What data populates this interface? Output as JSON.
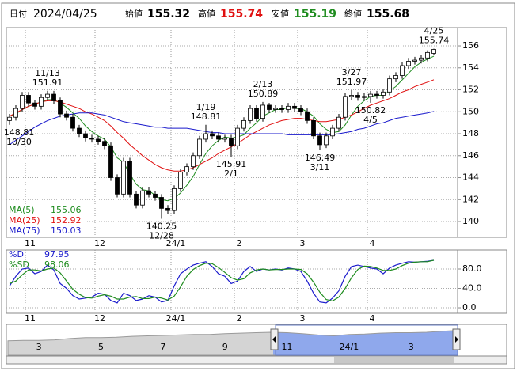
{
  "header": {
    "date_label": "日付",
    "date": "2024/04/25",
    "open_label": "始値",
    "high_label": "高値",
    "low_label": "安値",
    "close_label": "終値"
  },
  "chart_data": [
    {
      "type": "candlestick",
      "x": [
        null,
        null,
        null,
        "11",
        null,
        null,
        null,
        null,
        null,
        null,
        null,
        null,
        null,
        null,
        "12",
        null,
        null,
        null,
        null,
        null,
        null,
        null,
        null,
        null,
        null,
        null,
        "24/1",
        null,
        null,
        null,
        null,
        null,
        null,
        null,
        null,
        null,
        "2",
        null,
        null,
        null,
        null,
        null,
        null,
        null,
        null,
        null,
        "3",
        null,
        null,
        null,
        null,
        null,
        null,
        null,
        null,
        null,
        null,
        "4",
        null,
        null,
        null,
        null,
        null,
        null,
        null,
        null,
        null,
        null
      ],
      "open": [
        149.2,
        149.5,
        150.3,
        151.5,
        150.8,
        150.5,
        151.3,
        151.6,
        151.0,
        149.8,
        149.5,
        148.5,
        148.0,
        147.6,
        147.5,
        147.3,
        146.9,
        144.0,
        142.5,
        145.5,
        142.5,
        141.5,
        142.8,
        142.5,
        142.2,
        141.2,
        141.0,
        143.0,
        144.5,
        145.0,
        146.0,
        147.5,
        148.0,
        147.8,
        147.5,
        147.6,
        146.9,
        148.5,
        149.2,
        150.3,
        149.4,
        150.6,
        150.2,
        150.3,
        150.2,
        150.5,
        150.3,
        150.0,
        149.2,
        147.8,
        147.0,
        147.8,
        148.5,
        149.5,
        151.4,
        151.5,
        151.3,
        151.4,
        151.6,
        151.5,
        151.8,
        153.0,
        153.3,
        154.2,
        154.6,
        154.7,
        154.9,
        155.32
      ],
      "high": [
        149.8,
        150.6,
        151.8,
        151.8,
        151.1,
        151.6,
        151.91,
        151.9,
        151.3,
        150.1,
        149.8,
        148.8,
        148.3,
        147.9,
        147.8,
        147.6,
        147.2,
        144.3,
        145.8,
        145.8,
        142.8,
        143.1,
        143.1,
        142.8,
        142.5,
        141.5,
        143.3,
        144.8,
        145.3,
        146.3,
        147.8,
        148.81,
        148.3,
        148.1,
        147.9,
        147.9,
        148.8,
        149.5,
        150.6,
        150.6,
        150.89,
        150.8,
        150.6,
        150.6,
        150.8,
        150.8,
        150.6,
        150.3,
        149.5,
        148.1,
        148.1,
        148.8,
        149.8,
        151.7,
        151.97,
        151.8,
        151.7,
        151.9,
        151.9,
        152.1,
        153.3,
        153.6,
        154.5,
        154.9,
        155.0,
        155.2,
        155.6,
        155.74
      ],
      "low": [
        148.81,
        149.2,
        150.0,
        150.5,
        150.2,
        150.2,
        151.0,
        150.7,
        149.5,
        149.2,
        148.2,
        147.7,
        147.3,
        147.2,
        147.0,
        146.6,
        143.7,
        142.2,
        142.2,
        142.2,
        141.2,
        141.2,
        142.2,
        141.9,
        140.25,
        140.7,
        140.7,
        142.7,
        144.2,
        144.7,
        145.7,
        147.2,
        147.5,
        147.2,
        147.2,
        145.91,
        146.6,
        148.2,
        148.9,
        149.1,
        149.1,
        149.9,
        149.9,
        149.9,
        149.9,
        150.0,
        149.7,
        148.9,
        147.5,
        146.49,
        146.7,
        147.5,
        148.2,
        149.2,
        151.1,
        151.0,
        151.0,
        150.82,
        151.2,
        151.2,
        151.5,
        152.7,
        153.0,
        153.9,
        154.3,
        154.4,
        154.6,
        155.19
      ],
      "close": [
        149.5,
        150.3,
        151.5,
        150.8,
        150.5,
        151.3,
        151.6,
        151.0,
        149.8,
        149.5,
        148.5,
        148.0,
        147.6,
        147.5,
        147.3,
        146.9,
        144.0,
        142.5,
        145.5,
        142.5,
        141.5,
        142.8,
        142.5,
        142.2,
        141.2,
        141.0,
        143.0,
        144.5,
        145.0,
        146.0,
        147.5,
        148.0,
        147.8,
        147.5,
        147.6,
        146.9,
        148.5,
        149.2,
        150.3,
        149.4,
        150.6,
        150.2,
        150.3,
        150.2,
        150.5,
        150.3,
        150.0,
        149.2,
        147.8,
        147.0,
        147.8,
        148.5,
        149.5,
        151.4,
        151.5,
        151.3,
        151.4,
        151.6,
        151.5,
        151.8,
        153.0,
        153.3,
        154.2,
        154.6,
        154.7,
        154.9,
        155.4,
        155.68
      ],
      "up_color": "#ffffff",
      "down_color": "#000000",
      "series": [
        {
          "name": "MA(5)",
          "color": "#1e8c1e",
          "values": [
            149.6,
            149.8,
            150.2,
            150.5,
            150.7,
            150.9,
            151.1,
            151.1,
            150.8,
            150.4,
            149.9,
            149.4,
            148.7,
            148.2,
            147.8,
            147.5,
            146.8,
            145.8,
            145.4,
            144.3,
            143.4,
            142.9,
            142.8,
            142.4,
            142.0,
            141.9,
            142.1,
            142.6,
            143.3,
            144.1,
            145.2,
            146.2,
            146.9,
            147.4,
            147.7,
            147.6,
            147.7,
            147.9,
            148.5,
            149.0,
            149.6,
            149.9,
            150.2,
            150.2,
            150.4,
            150.3,
            150.3,
            150.0,
            149.6,
            148.9,
            148.4,
            148.1,
            148.2,
            148.8,
            149.7,
            150.5,
            151.0,
            151.4,
            151.5,
            151.5,
            151.9,
            152.3,
            152.9,
            153.5,
            154.1,
            154.5,
            154.8,
            155.06
          ]
        },
        {
          "name": "MA(25)",
          "color": "#e01010",
          "values": [
            149.6,
            149.9,
            150.2,
            150.5,
            150.7,
            150.9,
            151.0,
            151.0,
            150.9,
            150.7,
            150.5,
            150.3,
            150.0,
            149.8,
            149.5,
            149.2,
            148.7,
            148.1,
            147.6,
            147.0,
            146.5,
            146.0,
            145.6,
            145.2,
            144.9,
            144.7,
            144.6,
            144.6,
            144.7,
            144.9,
            145.2,
            145.5,
            145.8,
            146.2,
            146.5,
            146.8,
            147.1,
            147.5,
            147.9,
            148.2,
            148.5,
            148.8,
            149.0,
            149.2,
            149.3,
            149.4,
            149.4,
            149.3,
            149.2,
            149.1,
            149.1,
            149.2,
            149.3,
            149.5,
            149.7,
            150.0,
            150.3,
            150.6,
            150.8,
            151.0,
            151.2,
            151.5,
            151.8,
            152.0,
            152.3,
            152.5,
            152.7,
            152.92
          ]
        },
        {
          "name": "MA(75)",
          "color": "#1a1acc",
          "values": [
            147.0,
            147.4,
            147.8,
            148.2,
            148.6,
            148.9,
            149.2,
            149.4,
            149.6,
            149.7,
            149.8,
            149.9,
            149.9,
            149.9,
            149.8,
            149.7,
            149.5,
            149.3,
            149.1,
            149.0,
            148.9,
            148.8,
            148.7,
            148.6,
            148.6,
            148.5,
            148.5,
            148.5,
            148.5,
            148.4,
            148.3,
            148.2,
            148.1,
            148.1,
            148.0,
            148.0,
            148.0,
            148.0,
            148.0,
            148.0,
            148.0,
            148.0,
            148.0,
            148.0,
            147.9,
            147.9,
            147.9,
            147.9,
            147.9,
            147.9,
            147.9,
            147.9,
            148.0,
            148.1,
            148.2,
            148.4,
            148.5,
            148.7,
            148.9,
            149.0,
            149.2,
            149.4,
            149.5,
            149.6,
            149.7,
            149.8,
            149.9,
            150.03
          ]
        }
      ],
      "ylim": [
        138.56,
        157.66
      ],
      "yticks": [
        140,
        142,
        144,
        146,
        148,
        150,
        152,
        154,
        156
      ],
      "grid": true,
      "annotations": [
        {
          "label": "10/30",
          "value": 148.81,
          "at": "low"
        },
        {
          "label": "11/13",
          "value": 151.91,
          "at": "high"
        },
        {
          "label": "12/28",
          "value": 140.25,
          "at": "low"
        },
        {
          "label": "1/19",
          "value": 148.81,
          "at": "high"
        },
        {
          "label": "2/1",
          "value": 145.91,
          "at": "low"
        },
        {
          "label": "2/13",
          "value": 150.89,
          "at": "high"
        },
        {
          "label": "3/11",
          "value": 146.49,
          "at": "low"
        },
        {
          "label": "3/27",
          "value": 151.97,
          "at": "high"
        },
        {
          "label": "4/5",
          "value": 150.82,
          "at": "low"
        },
        {
          "label": "4/25",
          "value": 155.74,
          "at": "high"
        }
      ]
    },
    {
      "type": "line",
      "series": [
        {
          "name": "%D",
          "color": "#1a1acc",
          "values": [
            45,
            65,
            80,
            82,
            70,
            75,
            88,
            78,
            50,
            40,
            25,
            18,
            20,
            22,
            30,
            28,
            15,
            10,
            30,
            25,
            15,
            18,
            25,
            22,
            12,
            15,
            45,
            70,
            80,
            88,
            92,
            95,
            85,
            70,
            65,
            50,
            55,
            75,
            85,
            75,
            80,
            78,
            80,
            78,
            82,
            80,
            75,
            55,
            30,
            12,
            10,
            20,
            35,
            65,
            85,
            88,
            85,
            82,
            80,
            70,
            82,
            88,
            92,
            95,
            94,
            95,
            96,
            97.95
          ]
        },
        {
          "name": "%SD",
          "color": "#1e8c1e",
          "values": [
            50,
            55,
            68,
            78,
            78,
            76,
            80,
            82,
            72,
            55,
            38,
            28,
            21,
            20,
            24,
            27,
            24,
            18,
            18,
            22,
            23,
            19,
            19,
            22,
            20,
            16,
            24,
            43,
            65,
            79,
            87,
            92,
            91,
            83,
            73,
            62,
            57,
            60,
            72,
            78,
            80,
            78,
            79,
            79,
            80,
            80,
            79,
            70,
            53,
            32,
            17,
            14,
            22,
            40,
            62,
            79,
            86,
            85,
            82,
            77,
            77,
            80,
            87,
            92,
            94,
            95,
            95,
            98.06
          ]
        }
      ],
      "ylim": [
        -11.4,
        119.2
      ],
      "yticks": [
        {
          "value": 0,
          "label": "0.0"
        },
        {
          "value": 40,
          "label": "40.0"
        },
        {
          "value": 80,
          "label": "80.0"
        }
      ],
      "grid": true
    },
    {
      "type": "area",
      "categories": [
        null,
        null,
        "3",
        null,
        null,
        null,
        "5",
        null,
        null,
        null,
        "7",
        null,
        null,
        null,
        "9",
        null,
        null,
        null,
        "11",
        null,
        null,
        null,
        "24/1",
        null,
        null,
        null,
        "3",
        null,
        null,
        null
      ],
      "values": [
        132,
        133,
        133,
        134,
        137,
        139,
        139,
        140,
        142,
        143,
        144,
        145,
        146,
        146,
        148,
        149,
        150,
        151,
        150,
        148,
        145,
        143,
        146,
        147,
        149,
        150,
        150,
        151,
        153,
        155
      ],
      "ylim": [
        100,
        165
      ],
      "color": "#9a9a9a",
      "selected_color": "#8fa8ec"
    }
  ]
}
